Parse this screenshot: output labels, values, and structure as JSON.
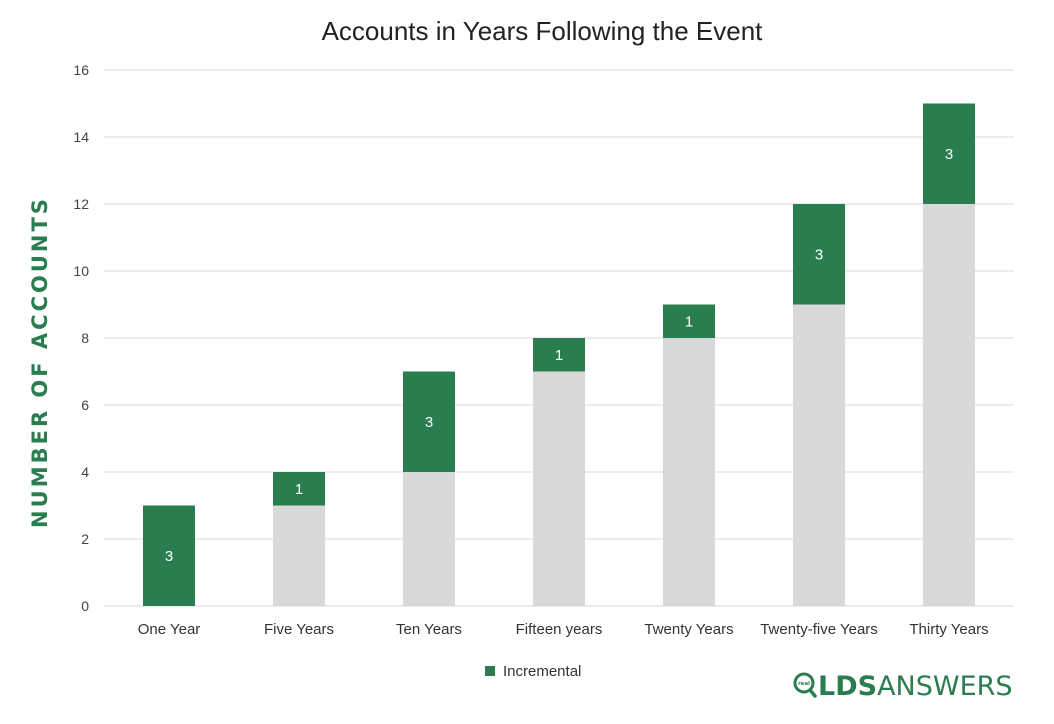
{
  "colors": {
    "incremental": "#2a7d4f",
    "base": "#d9d9d9",
    "grid": "#d9d9d9",
    "axis_title": "#2a7d4f",
    "logo_green": "#2a7d4f"
  },
  "logo": {
    "text_bold": "LDS",
    "text_light": "ANSWERS",
    "badge": "real"
  },
  "chart_data": {
    "type": "bar",
    "stacked": true,
    "title": "Accounts in Years Following the Event",
    "xlabel": "",
    "ylabel": "NUMBER OF ACCOUNTS",
    "ylim": [
      0,
      16
    ],
    "yticks": [
      0,
      2,
      4,
      6,
      8,
      10,
      12,
      14,
      16
    ],
    "grid": true,
    "legend_position": "bottom",
    "categories": [
      "One Year",
      "Five Years",
      "Ten Years",
      "Fifteen years",
      "Twenty Years",
      "Twenty-five Years",
      "Thirty Years"
    ],
    "series": [
      {
        "values": [
          0,
          3,
          4,
          7,
          8,
          9,
          12
        ]
      },
      {
        "name": "Incremental",
        "values": [
          3,
          1,
          3,
          1,
          1,
          3,
          3
        ],
        "data_labels": [
          "3",
          "1",
          "3",
          "1",
          "1",
          "3",
          "3"
        ]
      }
    ]
  }
}
